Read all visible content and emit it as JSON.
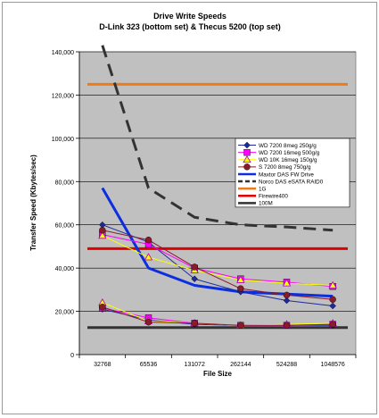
{
  "chart_data": {
    "type": "line",
    "title": "Drive Write Speeds",
    "subtitle": "D-Link 323 (bottom set) & Thecus 5200 (top set)",
    "xlabel": "File Size",
    "ylabel": "Transfer Speed (Kbytes/sec)",
    "categories": [
      "32768",
      "65536",
      "131072",
      "262144",
      "524288",
      "1048576"
    ],
    "ylim": [
      0,
      140000
    ],
    "yticks": [
      0,
      20000,
      40000,
      60000,
      80000,
      100000,
      120000,
      140000
    ],
    "ytick_labels": [
      "0",
      "20,000",
      "40,000",
      "60,000",
      "80,000",
      "100,000",
      "120,000",
      "140,000"
    ],
    "grid": true,
    "legend_position": "center-right",
    "plot_background": "#c0c0c0",
    "series": [
      {
        "name": "WD 7200 8meg 250g/g",
        "group": "top",
        "color": "#1f2a9a",
        "marker": "diamond",
        "width": 1,
        "values": [
          60000,
          52000,
          35000,
          29000,
          25000,
          22500
        ]
      },
      {
        "name": "WD 7200 8meg 250g/g",
        "group": "bottom",
        "color": "#1f2a9a",
        "marker": "diamond",
        "width": 1,
        "values": [
          21000,
          16000,
          14000,
          13500,
          13500,
          13500
        ],
        "legend": false
      },
      {
        "name": "WD 7200 16meg 500g/g",
        "group": "top",
        "color": "#ff00ff",
        "marker": "square",
        "width": 1,
        "values": [
          55500,
          51000,
          40000,
          35000,
          33500,
          31500
        ]
      },
      {
        "name": "WD 7200 16meg 500g/g",
        "group": "bottom",
        "color": "#ff00ff",
        "marker": "square",
        "width": 1,
        "values": [
          21500,
          17000,
          14500,
          13500,
          13500,
          14000
        ],
        "legend": false
      },
      {
        "name": "WD 10K 16meg 150g/g",
        "group": "top",
        "color": "#ffff00",
        "marker": "triangle",
        "width": 1,
        "values": [
          55000,
          45000,
          39000,
          34500,
          33000,
          32000
        ]
      },
      {
        "name": "WD 10K 16meg 150g/g",
        "group": "bottom",
        "color": "#ffff00",
        "marker": "triangle",
        "width": 1,
        "values": [
          24000,
          15500,
          14500,
          13500,
          14000,
          14500
        ],
        "legend": false
      },
      {
        "name": "S 7200 8meg 750g/g",
        "group": "top",
        "color": "#8b1a2a",
        "marker": "circle",
        "width": 1,
        "values": [
          57500,
          53000,
          40500,
          30500,
          27500,
          25500
        ]
      },
      {
        "name": "S 7200 8meg 750g/g",
        "group": "bottom",
        "color": "#8b1a2a",
        "marker": "circle",
        "width": 1,
        "values": [
          22000,
          15000,
          14500,
          13500,
          13500,
          14000
        ],
        "legend": false
      },
      {
        "name": "Maxtor DAS FW Drive",
        "group": "top",
        "color": "#0b2ee0",
        "marker": "none",
        "width": 3,
        "values": [
          77000,
          40000,
          32000,
          29000,
          28000,
          27000
        ]
      },
      {
        "name": "Norco DAS eSATA RAID0",
        "group": "top",
        "color": "#333333",
        "marker": "none",
        "width": 3,
        "dash": "14,8",
        "values": [
          143000,
          77000,
          63500,
          60000,
          59000,
          57500
        ]
      },
      {
        "name": "1G",
        "group": "ref",
        "color": "#f07a18",
        "marker": "none",
        "width": 3,
        "values": [
          125000,
          125000,
          125000,
          125000,
          125000,
          125000
        ]
      },
      {
        "name": "Firewire400",
        "group": "ref",
        "color": "#e00000",
        "marker": "none",
        "width": 3,
        "values": [
          49000,
          49000,
          49000,
          49000,
          49000,
          49000
        ]
      },
      {
        "name": "100M",
        "group": "ref",
        "color": "#333333",
        "marker": "none",
        "width": 3,
        "values": [
          12500,
          12500,
          12500,
          12500,
          12500,
          12500
        ]
      }
    ]
  }
}
